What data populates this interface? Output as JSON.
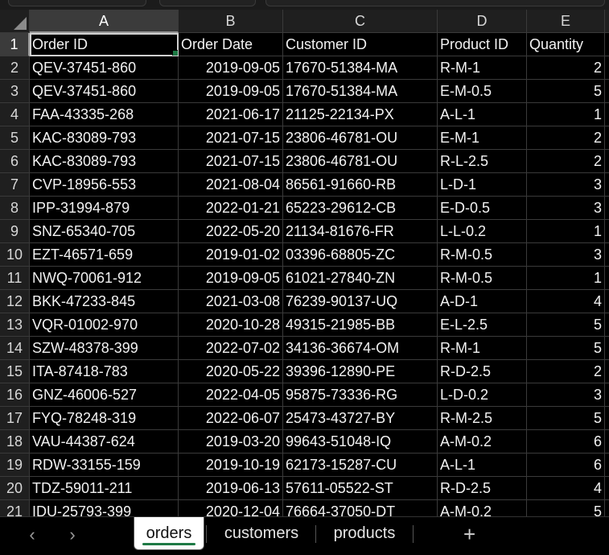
{
  "columns": [
    {
      "letter": "A",
      "header": "Order ID",
      "align": "left"
    },
    {
      "letter": "B",
      "header": "Order Date",
      "align": "right"
    },
    {
      "letter": "C",
      "header": "Customer ID",
      "align": "left"
    },
    {
      "letter": "D",
      "header": "Product ID",
      "align": "left"
    },
    {
      "letter": "E",
      "header": "Quantity",
      "align": "right"
    }
  ],
  "rows": [
    [
      "QEV-37451-860",
      "2019-09-05",
      "17670-51384-MA",
      "R-M-1",
      "2"
    ],
    [
      "QEV-37451-860",
      "2019-09-05",
      "17670-51384-MA",
      "E-M-0.5",
      "5"
    ],
    [
      "FAA-43335-268",
      "2021-06-17",
      "21125-22134-PX",
      "A-L-1",
      "1"
    ],
    [
      "KAC-83089-793",
      "2021-07-15",
      "23806-46781-OU",
      "E-M-1",
      "2"
    ],
    [
      "KAC-83089-793",
      "2021-07-15",
      "23806-46781-OU",
      "R-L-2.5",
      "2"
    ],
    [
      "CVP-18956-553",
      "2021-08-04",
      "86561-91660-RB",
      "L-D-1",
      "3"
    ],
    [
      "IPP-31994-879",
      "2022-01-21",
      "65223-29612-CB",
      "E-D-0.5",
      "3"
    ],
    [
      "SNZ-65340-705",
      "2022-05-20",
      "21134-81676-FR",
      "L-L-0.2",
      "1"
    ],
    [
      "EZT-46571-659",
      "2019-01-02",
      "03396-68805-ZC",
      "R-M-0.5",
      "3"
    ],
    [
      "NWQ-70061-912",
      "2019-09-05",
      "61021-27840-ZN",
      "R-M-0.5",
      "1"
    ],
    [
      "BKK-47233-845",
      "2021-03-08",
      "76239-90137-UQ",
      "A-D-1",
      "4"
    ],
    [
      "VQR-01002-970",
      "2020-10-28",
      "49315-21985-BB",
      "E-L-2.5",
      "5"
    ],
    [
      "SZW-48378-399",
      "2022-07-02",
      "34136-36674-OM",
      "R-M-1",
      "5"
    ],
    [
      "ITA-87418-783",
      "2020-05-22",
      "39396-12890-PE",
      "R-D-2.5",
      "2"
    ],
    [
      "GNZ-46006-527",
      "2022-04-05",
      "95875-73336-RG",
      "L-D-0.2",
      "3"
    ],
    [
      "FYQ-78248-319",
      "2022-06-07",
      "25473-43727-BY",
      "R-M-2.5",
      "5"
    ],
    [
      "VAU-44387-624",
      "2019-03-20",
      "99643-51048-IQ",
      "A-M-0.2",
      "6"
    ],
    [
      "RDW-33155-159",
      "2019-10-19",
      "62173-15287-CU",
      "A-L-1",
      "6"
    ],
    [
      "TDZ-59011-211",
      "2019-06-13",
      "57611-05522-ST",
      "R-D-2.5",
      "4"
    ],
    [
      "IDU-25793-399",
      "2020-12-04",
      "76664-37050-DT",
      "A-M-0.2",
      "5"
    ]
  ],
  "sheet_tabs": [
    {
      "label": "orders",
      "active": true
    },
    {
      "label": "customers",
      "active": false
    },
    {
      "label": "products",
      "active": false
    }
  ],
  "nav": {
    "prev_icon": "‹",
    "next_icon": "›",
    "add_icon": "+"
  },
  "colors": {
    "accent": "#1e7a45"
  }
}
